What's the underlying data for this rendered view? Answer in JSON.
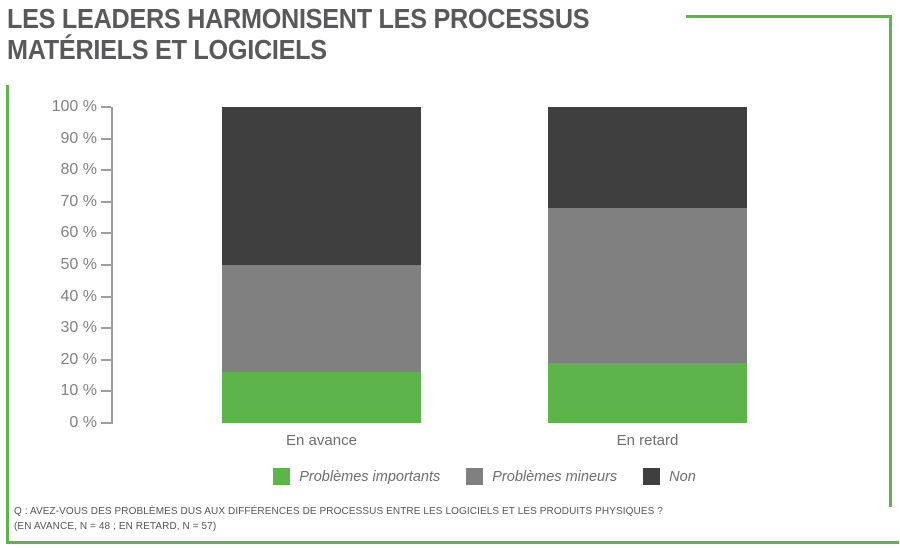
{
  "title": {
    "line1": "LES LEADERS HARMONISENT LES PROCESSUS",
    "line2": "MATÉRIELS ET LOGICIELS"
  },
  "colors": {
    "green": "#5CB44B",
    "mid_gray": "#808081",
    "dark_gray": "#3F3F40",
    "frame_green": "#5CB44B",
    "title_text": "#58595B",
    "axis_line": "#9B9DA0",
    "tick_text": "#808184",
    "label_text": "#6D6E71",
    "footnote_text": "#55565A"
  },
  "chart_data": {
    "type": "bar",
    "stacked": true,
    "title": "LES LEADERS HARMONISENT LES PROCESSUS MATÉRIELS ET LOGICIELS",
    "categories": [
      "En avance",
      "En retard"
    ],
    "series": [
      {
        "name": "Problèmes importants",
        "color_key": "green",
        "values": [
          16,
          19
        ]
      },
      {
        "name": "Problèmes mineurs",
        "color_key": "mid_gray",
        "values": [
          34,
          49
        ]
      },
      {
        "name": "Non",
        "color_key": "dark_gray",
        "values": [
          50,
          32
        ]
      }
    ],
    "ylabel": "",
    "xlabel": "",
    "ylim": [
      0,
      100
    ],
    "y_ticks": [
      "100 %",
      "90 %",
      "80 %",
      "70 %",
      "60 %",
      "50 %",
      "40 %",
      "30 %",
      "20 %",
      "10 %",
      "0 %"
    ],
    "grid": false,
    "legend_position": "bottom"
  },
  "footnote": {
    "line1": "Q : AVEZ-VOUS DES PROBLÈMES DUS AUX DIFFÉRENCES DE PROCESSUS ENTRE LES LOGICIELS ET LES PRODUITS PHYSIQUES ?",
    "line2": "(EN AVANCE, N = 48 ; EN RETARD, N = 57)"
  }
}
